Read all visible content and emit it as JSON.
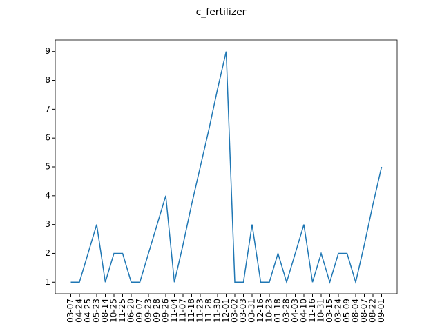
{
  "chart_data": {
    "type": "line",
    "title": "c_fertilizer",
    "categories": [
      "03-07",
      "04-24",
      "04-25",
      "05-23",
      "08-14",
      "10-25",
      "11-25",
      "06-20",
      "09-07",
      "09-23",
      "09-28",
      "09-26",
      "11-04",
      "11-07",
      "11-18",
      "11-23",
      "11-28",
      "11-30",
      "12-01",
      "03-02",
      "03-03",
      "03-31",
      "12-16",
      "10-23",
      "01-18",
      "03-28",
      "04-03",
      "04-10",
      "11-16",
      "10-31",
      "03-15",
      "03-24",
      "05-09",
      "08-04",
      "08-07",
      "08-22",
      "09-01"
    ],
    "series": [
      {
        "name": "c_fertilizer",
        "color": "#1f77b4",
        "values": [
          1,
          1,
          2,
          3,
          1,
          2,
          2,
          1,
          1,
          2,
          3,
          4,
          1,
          2.3,
          3.7,
          5,
          6.3,
          7.7,
          9,
          1,
          1,
          3,
          1,
          1,
          2,
          1,
          2,
          3,
          1,
          2,
          1,
          2,
          2,
          1,
          2.3,
          3.7,
          5
        ]
      }
    ],
    "ylim": [
      0.6,
      9.4
    ],
    "yticks": [
      1,
      2,
      3,
      4,
      5,
      6,
      7,
      8,
      9
    ],
    "grid": false
  }
}
